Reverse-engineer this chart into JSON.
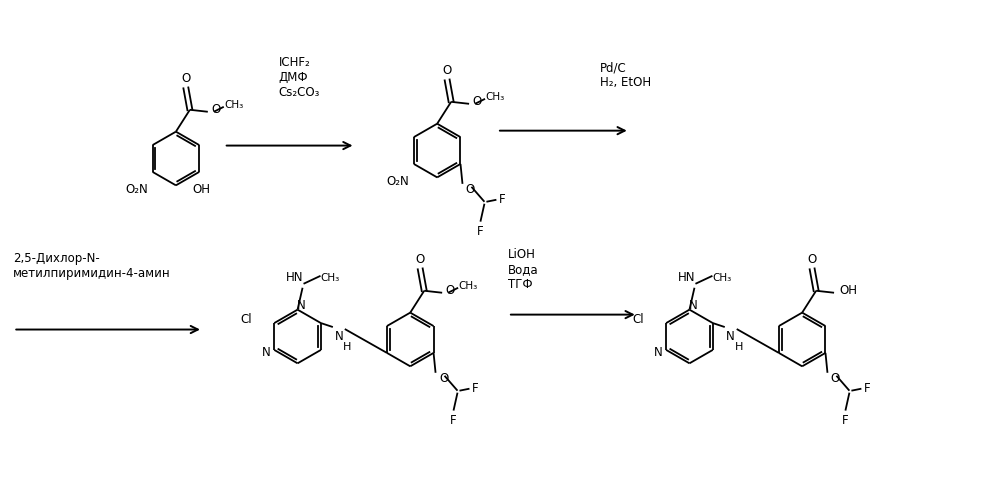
{
  "background_color": "#ffffff",
  "figsize": [
    10.0,
    4.93
  ],
  "dpi": 100,
  "reagents_1": "ICHF₂\nДМФ\nCs₂CO₃",
  "reagents_2": "Pd/C\nH₂, EtOH",
  "reagents_3": "LiOH\nВода\nТГФ",
  "label_bottom_left": "2,5-Дихлор-N-\nметилпиримидин-4-амин"
}
